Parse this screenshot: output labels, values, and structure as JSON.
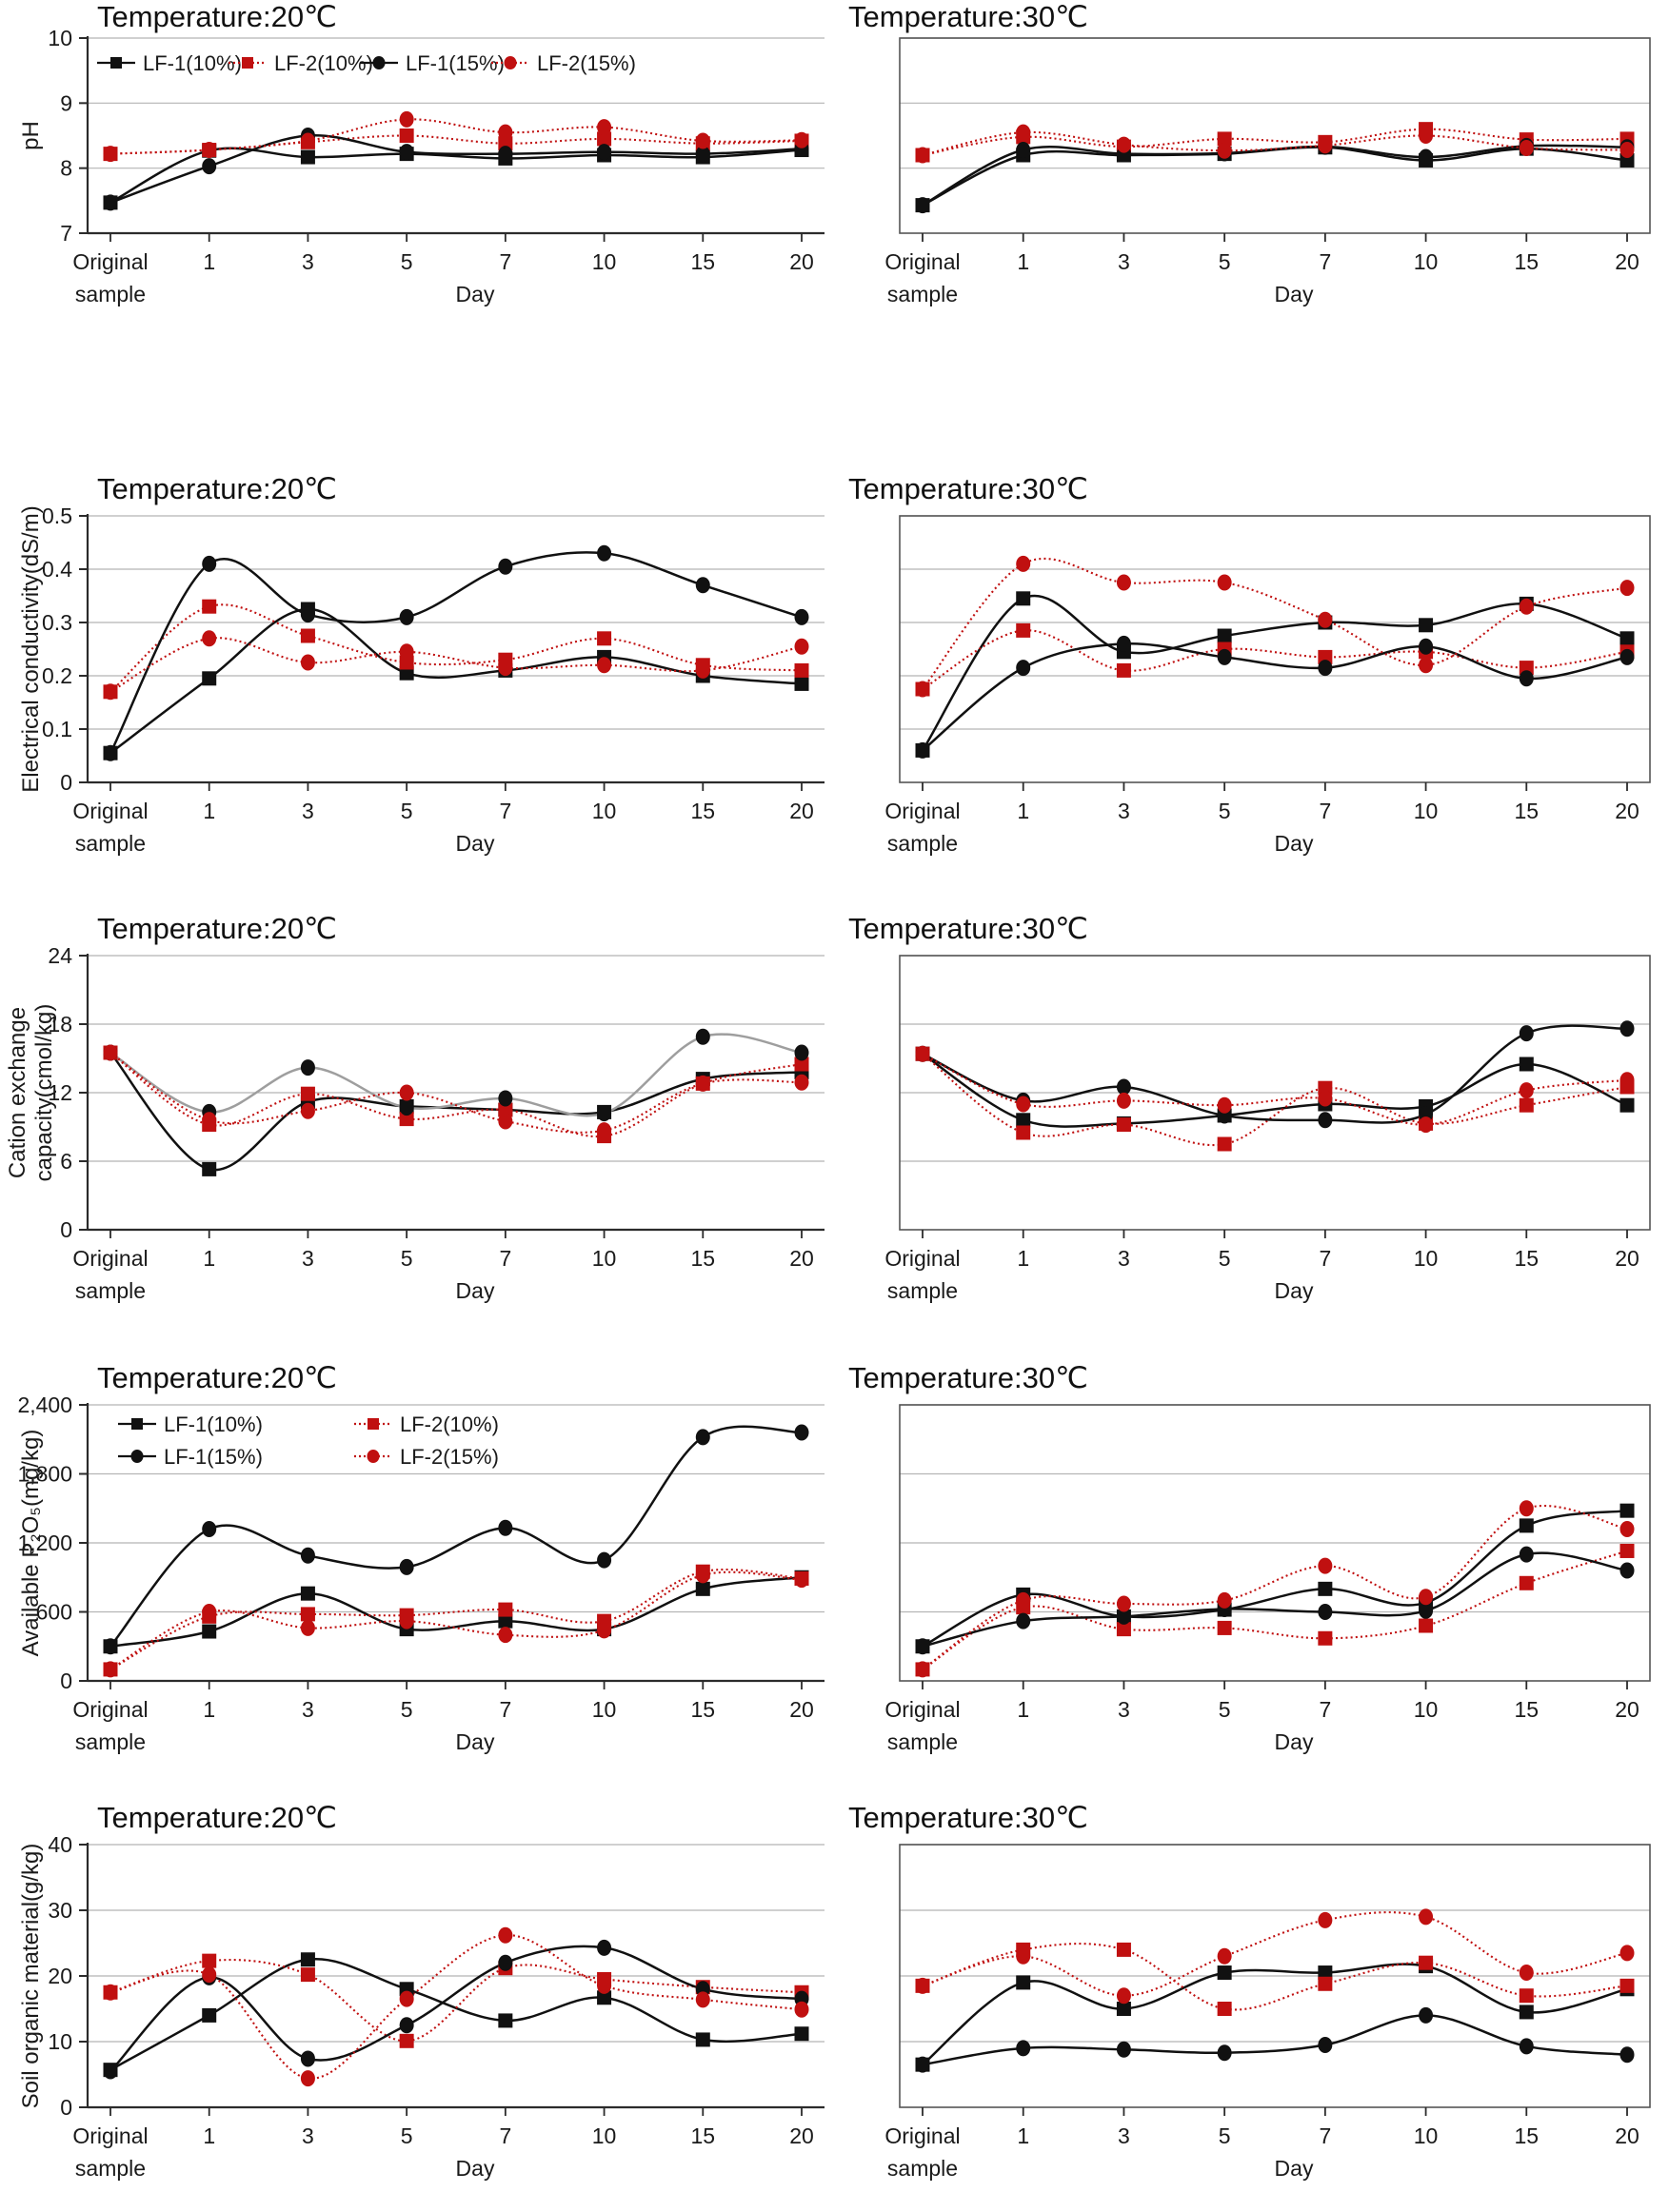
{
  "page": {
    "background": "#ffffff"
  },
  "colors": {
    "series_black": "#111111",
    "series_red": "#c01010",
    "cec_gray_line": "#9e9e9e",
    "gridline": "#b5b5b5",
    "axis": "#2b2b2b",
    "text": "#1a1a1a"
  },
  "legend_labels": [
    "LF-1(10%)",
    "LF-2(10%)",
    "LF-1(15%)",
    "LF-2(15%)"
  ],
  "x_axis": {
    "first_label_line1": "Original",
    "first_label_line2": "sample",
    "label": "Day"
  },
  "chart_data": [
    {
      "type": "line",
      "title": "Temperature:20℃",
      "ylabel": "pH",
      "ylim": [
        7,
        10
      ],
      "ytick_values": [
        7,
        8,
        9,
        10
      ],
      "ytick_labels": [
        "7",
        "8",
        "9",
        "10"
      ],
      "show_ytick_labels": true,
      "legend": "row",
      "xlabel": "Day",
      "categories": [
        "Original sample",
        "1",
        "3",
        "5",
        "7",
        "10",
        "15",
        "20"
      ],
      "series": [
        {
          "name": "LF-1(10%)",
          "marker": "square",
          "color": "#111111",
          "line_style": "solid",
          "values": [
            7.47,
            8.27,
            8.17,
            8.22,
            8.15,
            8.2,
            8.17,
            8.28
          ]
        },
        {
          "name": "LF-2(10%)",
          "marker": "square",
          "color": "#c01010",
          "line_style": "dotted",
          "values": [
            8.22,
            8.28,
            8.4,
            8.5,
            8.38,
            8.45,
            8.38,
            8.42
          ]
        },
        {
          "name": "LF-1(15%)",
          "marker": "circle",
          "color": "#111111",
          "line_style": "solid",
          "values": [
            7.47,
            8.03,
            8.5,
            8.25,
            8.22,
            8.25,
            8.22,
            8.3
          ]
        },
        {
          "name": "LF-2(15%)",
          "marker": "circle",
          "color": "#c01010",
          "line_style": "dotted",
          "values": [
            8.22,
            8.28,
            8.42,
            8.75,
            8.55,
            8.63,
            8.42,
            8.43
          ]
        }
      ]
    },
    {
      "type": "line",
      "title": "Temperature:30℃",
      "ylabel": "",
      "ylim": [
        7,
        10
      ],
      "ytick_values": [
        7,
        8,
        9,
        10
      ],
      "ytick_labels": [
        "7",
        "8",
        "9",
        "10"
      ],
      "show_ytick_labels": false,
      "legend": "none",
      "xlabel": "Day",
      "categories": [
        "Original sample",
        "1",
        "3",
        "5",
        "7",
        "10",
        "15",
        "20"
      ],
      "series": [
        {
          "name": "LF-1(10%)",
          "marker": "square",
          "color": "#111111",
          "line_style": "solid",
          "values": [
            7.43,
            8.2,
            8.2,
            8.22,
            8.32,
            8.12,
            8.3,
            8.12
          ]
        },
        {
          "name": "LF-2(10%)",
          "marker": "square",
          "color": "#c01010",
          "line_style": "dotted",
          "values": [
            8.2,
            8.48,
            8.33,
            8.45,
            8.4,
            8.6,
            8.44,
            8.45
          ]
        },
        {
          "name": "LF-1(15%)",
          "marker": "circle",
          "color": "#111111",
          "line_style": "solid",
          "values": [
            7.43,
            8.28,
            8.22,
            8.23,
            8.33,
            8.17,
            8.34,
            8.32
          ]
        },
        {
          "name": "LF-2(15%)",
          "marker": "circle",
          "color": "#c01010",
          "line_style": "dotted",
          "values": [
            8.2,
            8.55,
            8.36,
            8.27,
            8.35,
            8.5,
            8.31,
            8.28
          ]
        }
      ]
    },
    {
      "type": "line",
      "title": "Temperature:20℃",
      "ylabel": "Electrical conductivity(dS/m)",
      "ylim": [
        0,
        0.5
      ],
      "ytick_values": [
        0,
        0.1,
        0.2,
        0.3,
        0.4,
        0.5
      ],
      "ytick_labels": [
        "0",
        "0.1",
        "0.2",
        "0.3",
        "0.4",
        "0.5"
      ],
      "show_ytick_labels": true,
      "legend": "none",
      "xlabel": "Day",
      "categories": [
        "Original sample",
        "1",
        "3",
        "5",
        "7",
        "10",
        "15",
        "20"
      ],
      "series": [
        {
          "name": "LF-1(10%)",
          "marker": "square",
          "color": "#111111",
          "line_style": "solid",
          "values": [
            0.055,
            0.195,
            0.325,
            0.205,
            0.21,
            0.235,
            0.2,
            0.185
          ]
        },
        {
          "name": "LF-2(10%)",
          "marker": "square",
          "color": "#c01010",
          "line_style": "dotted",
          "values": [
            0.17,
            0.33,
            0.275,
            0.225,
            0.23,
            0.27,
            0.22,
            0.21
          ]
        },
        {
          "name": "LF-1(15%)",
          "marker": "circle",
          "color": "#111111",
          "line_style": "solid",
          "values": [
            0.055,
            0.41,
            0.315,
            0.31,
            0.405,
            0.43,
            0.37,
            0.31
          ]
        },
        {
          "name": "LF-2(15%)",
          "marker": "circle",
          "color": "#c01010",
          "line_style": "dotted",
          "values": [
            0.17,
            0.27,
            0.225,
            0.245,
            0.215,
            0.22,
            0.21,
            0.255
          ]
        }
      ]
    },
    {
      "type": "line",
      "title": "Temperature:30℃",
      "ylabel": "",
      "ylim": [
        0,
        0.5
      ],
      "ytick_values": [
        0,
        0.1,
        0.2,
        0.3,
        0.4,
        0.5
      ],
      "ytick_labels": [
        "0",
        "0.1",
        "0.2",
        "0.3",
        "0.4",
        "0.5"
      ],
      "show_ytick_labels": false,
      "legend": "none",
      "xlabel": "Day",
      "categories": [
        "Original sample",
        "1",
        "3",
        "5",
        "7",
        "10",
        "15",
        "20"
      ],
      "series": [
        {
          "name": "LF-1(10%)",
          "marker": "square",
          "color": "#111111",
          "line_style": "solid",
          "values": [
            0.06,
            0.345,
            0.245,
            0.275,
            0.3,
            0.295,
            0.335,
            0.27
          ]
        },
        {
          "name": "LF-2(10%)",
          "marker": "square",
          "color": "#c01010",
          "line_style": "dotted",
          "values": [
            0.175,
            0.285,
            0.21,
            0.25,
            0.235,
            0.245,
            0.215,
            0.245
          ]
        },
        {
          "name": "LF-1(15%)",
          "marker": "circle",
          "color": "#111111",
          "line_style": "solid",
          "values": [
            0.06,
            0.215,
            0.26,
            0.235,
            0.215,
            0.255,
            0.195,
            0.235
          ]
        },
        {
          "name": "LF-2(15%)",
          "marker": "circle",
          "color": "#c01010",
          "line_style": "dotted",
          "values": [
            0.175,
            0.41,
            0.375,
            0.375,
            0.305,
            0.22,
            0.33,
            0.365
          ]
        }
      ]
    },
    {
      "type": "line",
      "title": "Temperature:20℃",
      "ylabel": "Cation exchange\ncapacity(cmol/kg)",
      "ylim": [
        0,
        24
      ],
      "ytick_values": [
        0,
        6,
        12,
        18,
        24
      ],
      "ytick_labels": [
        "0",
        "6",
        "12",
        "18",
        "24"
      ],
      "show_ytick_labels": true,
      "legend": "none",
      "xlabel": "Day",
      "categories": [
        "Original sample",
        "1",
        "3",
        "5",
        "7",
        "10",
        "15",
        "20"
      ],
      "series": [
        {
          "name": "LF-1(10%)",
          "marker": "square",
          "color": "#111111",
          "line_style": "solid",
          "values": [
            15.5,
            5.3,
            11.2,
            10.8,
            10.5,
            10.3,
            13.2,
            13.8
          ]
        },
        {
          "name": "LF-2(10%)",
          "marker": "square",
          "color": "#c01010",
          "line_style": "dotted",
          "values": [
            15.5,
            9.2,
            11.9,
            9.7,
            10.5,
            8.2,
            12.8,
            14.5
          ]
        },
        {
          "name": "LF-1(15%)",
          "marker": "circle",
          "color": "#111111",
          "line_style": "solid",
          "line_color": "#9e9e9e",
          "values": [
            15.5,
            10.3,
            14.2,
            10.7,
            11.5,
            10.2,
            16.9,
            15.5
          ]
        },
        {
          "name": "LF-2(15%)",
          "marker": "circle",
          "color": "#c01010",
          "line_style": "dotted",
          "values": [
            15.5,
            9.6,
            10.4,
            12.0,
            9.5,
            8.7,
            12.8,
            12.9
          ]
        }
      ]
    },
    {
      "type": "line",
      "title": "Temperature:30℃",
      "ylabel": "",
      "ylim": [
        0,
        24
      ],
      "ytick_values": [
        0,
        6,
        12,
        18,
        24
      ],
      "ytick_labels": [
        "0",
        "6",
        "12",
        "18",
        "24"
      ],
      "show_ytick_labels": false,
      "legend": "none",
      "xlabel": "Day",
      "categories": [
        "Original sample",
        "1",
        "3",
        "5",
        "7",
        "10",
        "15",
        "20"
      ],
      "series": [
        {
          "name": "LF-1(10%)",
          "marker": "square",
          "color": "#111111",
          "line_style": "solid",
          "values": [
            15.4,
            9.6,
            9.3,
            10.0,
            11.0,
            10.8,
            14.5,
            10.9
          ]
        },
        {
          "name": "LF-2(10%)",
          "marker": "square",
          "color": "#c01010",
          "line_style": "dotted",
          "values": [
            15.4,
            8.5,
            9.2,
            7.5,
            12.4,
            9.3,
            10.9,
            12.5
          ]
        },
        {
          "name": "LF-1(15%)",
          "marker": "circle",
          "color": "#111111",
          "line_style": "solid",
          "values": [
            15.4,
            11.3,
            12.5,
            10.0,
            9.6,
            10.1,
            17.2,
            17.6
          ]
        },
        {
          "name": "LF-2(15%)",
          "marker": "circle",
          "color": "#c01010",
          "line_style": "dotted",
          "values": [
            15.4,
            11.0,
            11.3,
            10.9,
            11.5,
            9.2,
            12.2,
            13.1
          ]
        }
      ]
    },
    {
      "type": "line",
      "title": "Temperature:20℃",
      "ylabel": "Available P₂O₅(mg/kg)",
      "ylim": [
        0,
        2400
      ],
      "ytick_values": [
        0,
        600,
        1200,
        1800,
        2400
      ],
      "ytick_labels": [
        "0",
        "600",
        "1,200",
        "1,800",
        "2,400"
      ],
      "show_ytick_labels": true,
      "legend": "grid",
      "xlabel": "Day",
      "categories": [
        "Original sample",
        "1",
        "3",
        "5",
        "7",
        "10",
        "15",
        "20"
      ],
      "series": [
        {
          "name": "LF-1(10%)",
          "marker": "square",
          "color": "#111111",
          "line_style": "solid",
          "values": [
            300,
            430,
            760,
            450,
            520,
            450,
            800,
            900
          ]
        },
        {
          "name": "LF-2(10%)",
          "marker": "square",
          "color": "#c01010",
          "line_style": "dotted",
          "values": [
            100,
            560,
            580,
            570,
            620,
            520,
            950,
            890
          ]
        },
        {
          "name": "LF-1(15%)",
          "marker": "circle",
          "color": "#111111",
          "line_style": "solid",
          "values": [
            300,
            1320,
            1090,
            990,
            1330,
            1050,
            2120,
            2160
          ]
        },
        {
          "name": "LF-2(15%)",
          "marker": "circle",
          "color": "#c01010",
          "line_style": "dotted",
          "values": [
            100,
            600,
            460,
            520,
            400,
            440,
            920,
            880
          ]
        }
      ]
    },
    {
      "type": "line",
      "title": "Temperature:30℃",
      "ylabel": "",
      "ylim": [
        0,
        2400
      ],
      "ytick_values": [
        0,
        600,
        1200,
        1800,
        2400
      ],
      "ytick_labels": [
        "0",
        "600",
        "1,200",
        "1,800",
        "2,400"
      ],
      "show_ytick_labels": false,
      "legend": "none",
      "xlabel": "Day",
      "categories": [
        "Original sample",
        "1",
        "3",
        "5",
        "7",
        "10",
        "15",
        "20"
      ],
      "series": [
        {
          "name": "LF-1(10%)",
          "marker": "square",
          "color": "#111111",
          "line_style": "solid",
          "values": [
            300,
            750,
            560,
            620,
            800,
            680,
            1350,
            1480
          ]
        },
        {
          "name": "LF-2(10%)",
          "marker": "square",
          "color": "#c01010",
          "line_style": "dotted",
          "values": [
            100,
            640,
            450,
            460,
            370,
            480,
            850,
            1130
          ]
        },
        {
          "name": "LF-1(15%)",
          "marker": "circle",
          "color": "#111111",
          "line_style": "solid",
          "values": [
            300,
            520,
            560,
            625,
            600,
            610,
            1100,
            960
          ]
        },
        {
          "name": "LF-2(15%)",
          "marker": "circle",
          "color": "#c01010",
          "line_style": "dotted",
          "values": [
            100,
            700,
            670,
            700,
            1000,
            730,
            1500,
            1320
          ]
        }
      ]
    },
    {
      "type": "line",
      "title": "Temperature:20℃",
      "ylabel": "Soil organic material(g/kg)",
      "ylim": [
        0,
        40
      ],
      "ytick_values": [
        0,
        10,
        20,
        30,
        40
      ],
      "ytick_labels": [
        "0",
        "10",
        "20",
        "30",
        "40"
      ],
      "show_ytick_labels": true,
      "legend": "none",
      "xlabel": "Day",
      "categories": [
        "Original sample",
        "1",
        "3",
        "5",
        "7",
        "10",
        "15",
        "20"
      ],
      "series": [
        {
          "name": "LF-1(10%)",
          "marker": "square",
          "color": "#111111",
          "line_style": "solid",
          "values": [
            5.7,
            14.0,
            22.5,
            18.0,
            13.2,
            16.7,
            10.3,
            11.2
          ]
        },
        {
          "name": "LF-2(10%)",
          "marker": "square",
          "color": "#c01010",
          "line_style": "dotted",
          "values": [
            17.5,
            22.3,
            20.2,
            10.1,
            21.2,
            19.5,
            18.3,
            17.5
          ]
        },
        {
          "name": "LF-1(15%)",
          "marker": "circle",
          "color": "#111111",
          "line_style": "solid",
          "values": [
            5.5,
            19.8,
            7.4,
            12.5,
            22.0,
            24.3,
            18.0,
            16.5
          ]
        },
        {
          "name": "LF-2(15%)",
          "marker": "circle",
          "color": "#c01010",
          "line_style": "dotted",
          "values": [
            17.5,
            20.2,
            4.4,
            16.5,
            26.2,
            18.5,
            16.4,
            14.9
          ]
        }
      ]
    },
    {
      "type": "line",
      "title": "Temperature:30℃",
      "ylabel": "",
      "ylim": [
        0,
        40
      ],
      "ytick_values": [
        0,
        10,
        20,
        30,
        40
      ],
      "ytick_labels": [
        "0",
        "10",
        "20",
        "30",
        "40"
      ],
      "show_ytick_labels": false,
      "legend": "none",
      "xlabel": "Day",
      "categories": [
        "Original sample",
        "1",
        "3",
        "5",
        "7",
        "10",
        "15",
        "20"
      ],
      "series": [
        {
          "name": "LF-1(10%)",
          "marker": "square",
          "color": "#111111",
          "line_style": "solid",
          "values": [
            6.5,
            19.0,
            15.0,
            20.5,
            20.5,
            21.5,
            14.5,
            18.0
          ]
        },
        {
          "name": "LF-2(10%)",
          "marker": "square",
          "color": "#c01010",
          "line_style": "dotted",
          "values": [
            18.5,
            24.0,
            24.0,
            15.0,
            18.8,
            22.0,
            17.0,
            18.5
          ]
        },
        {
          "name": "LF-1(15%)",
          "marker": "circle",
          "color": "#111111",
          "line_style": "solid",
          "values": [
            6.5,
            9.0,
            8.8,
            8.3,
            9.5,
            14.0,
            9.3,
            8.0
          ]
        },
        {
          "name": "LF-2(15%)",
          "marker": "circle",
          "color": "#c01010",
          "line_style": "dotted",
          "values": [
            18.5,
            23.0,
            17.0,
            23.0,
            28.5,
            29.0,
            20.5,
            23.5
          ]
        }
      ]
    }
  ]
}
